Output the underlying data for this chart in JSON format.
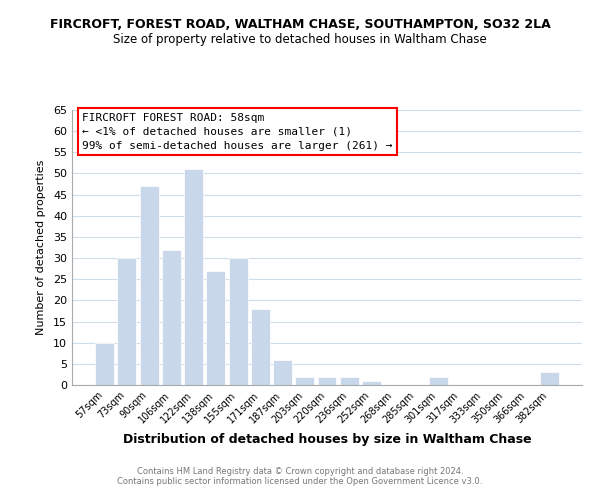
{
  "title": "FIRCROFT, FOREST ROAD, WALTHAM CHASE, SOUTHAMPTON, SO32 2LA",
  "subtitle": "Size of property relative to detached houses in Waltham Chase",
  "xlabel": "Distribution of detached houses by size in Waltham Chase",
  "ylabel": "Number of detached properties",
  "bar_color": "#c8d8ea",
  "bar_edge_color": "#ffffff",
  "background_color": "#ffffff",
  "grid_color": "#d0dce8",
  "bin_labels": [
    "57sqm",
    "73sqm",
    "90sqm",
    "106sqm",
    "122sqm",
    "138sqm",
    "155sqm",
    "171sqm",
    "187sqm",
    "203sqm",
    "220sqm",
    "236sqm",
    "252sqm",
    "268sqm",
    "285sqm",
    "301sqm",
    "317sqm",
    "333sqm",
    "350sqm",
    "366sqm",
    "382sqm"
  ],
  "bar_heights": [
    10,
    30,
    47,
    32,
    51,
    27,
    30,
    18,
    6,
    2,
    2,
    2,
    1,
    0,
    0,
    2,
    0,
    0,
    0,
    0,
    3
  ],
  "ylim": [
    0,
    65
  ],
  "yticks": [
    0,
    5,
    10,
    15,
    20,
    25,
    30,
    35,
    40,
    45,
    50,
    55,
    60,
    65
  ],
  "annotation_title": "FIRCROFT FOREST ROAD: 58sqm",
  "annotation_line1": "← <1% of detached houses are smaller (1)",
  "annotation_line2": "99% of semi-detached houses are larger (261) →",
  "footer1": "Contains HM Land Registry data © Crown copyright and database right 2024.",
  "footer2": "Contains public sector information licensed under the Open Government Licence v3.0."
}
